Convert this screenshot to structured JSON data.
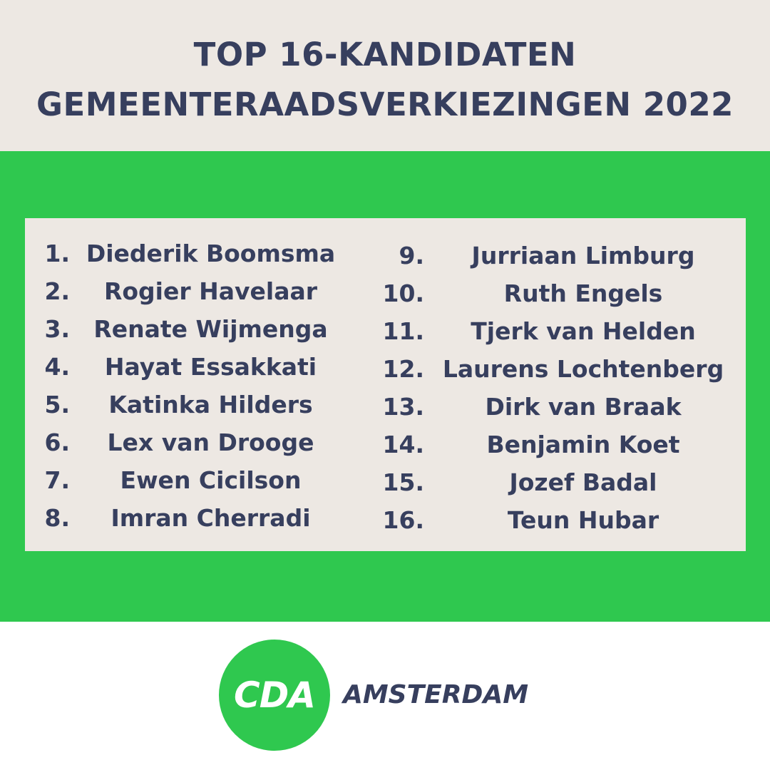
{
  "header": {
    "line1": "TOP 16-KANDIDATEN",
    "line2": "GEMEENTERAADSVERKIEZINGEN 2022"
  },
  "candidates": [
    {
      "number": "1.",
      "name": "Diederik Boomsma"
    },
    {
      "number": "2.",
      "name": "Rogier Havelaar"
    },
    {
      "number": "3.",
      "name": "Renate Wijmenga"
    },
    {
      "number": "4.",
      "name": "Hayat Essakkati"
    },
    {
      "number": "5.",
      "name": "Katinka Hilders"
    },
    {
      "number": "6.",
      "name": "Lex van Drooge"
    },
    {
      "number": "7.",
      "name": "Ewen Cicilson"
    },
    {
      "number": "8.",
      "name": "Imran Cherradi"
    },
    {
      "number": "9.",
      "name": "Jurriaan Limburg"
    },
    {
      "number": "10.",
      "name": "Ruth Engels"
    },
    {
      "number": "11.",
      "name": "Tjerk van Helden"
    },
    {
      "number": "12.",
      "name": "Laurens Lochtenberg"
    },
    {
      "number": "13.",
      "name": "Dirk van Braak"
    },
    {
      "number": "14.",
      "name": "Benjamin Koet"
    },
    {
      "number": "15.",
      "name": "Jozef Badal"
    },
    {
      "number": "16.",
      "name": "Teun Hubar"
    }
  ],
  "logo": {
    "mark": "CDA",
    "city": "AMSTERDAM"
  },
  "colors": {
    "green": "#2fc84f",
    "navy": "#373f5e",
    "beige": "#ede8e3"
  }
}
